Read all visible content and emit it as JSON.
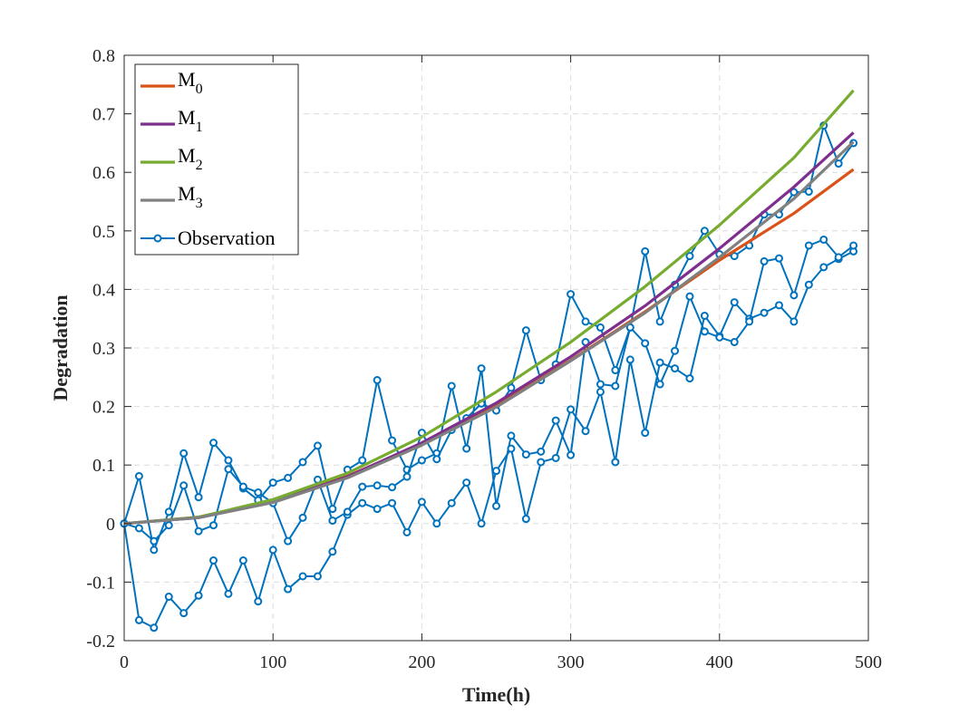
{
  "chart_data": {
    "type": "line",
    "title": "",
    "xlabel": "Time(h)",
    "ylabel": "Degradation",
    "xlim": [
      0,
      500
    ],
    "ylim": [
      -0.2,
      0.8
    ],
    "xticks": [
      0,
      100,
      200,
      300,
      400,
      500
    ],
    "yticks": [
      -0.2,
      -0.1,
      0,
      0.1,
      0.2,
      0.3,
      0.4,
      0.5,
      0.6,
      0.7,
      0.8
    ],
    "xtick_labels": [
      "0",
      "100",
      "200",
      "300",
      "400",
      "500"
    ],
    "ytick_labels": [
      "-0.2",
      "-0.1",
      "0",
      "0.1",
      "0.2",
      "0.3",
      "0.4",
      "0.5",
      "0.6",
      "0.7",
      "0.8"
    ],
    "grid": true,
    "legend_position": "top-left",
    "series": [
      {
        "name": "M",
        "subscript": "0",
        "color": "#D95319",
        "style": "line",
        "x": [
          0,
          50,
          100,
          150,
          200,
          250,
          300,
          350,
          400,
          450,
          490
        ],
        "y": [
          0,
          0.011,
          0.039,
          0.081,
          0.136,
          0.202,
          0.279,
          0.362,
          0.45,
          0.53,
          0.605
        ]
      },
      {
        "name": "M",
        "subscript": "1",
        "color": "#7E2F8E",
        "style": "line",
        "x": [
          0,
          50,
          100,
          150,
          200,
          250,
          300,
          350,
          400,
          450,
          490
        ],
        "y": [
          0,
          0.01,
          0.037,
          0.08,
          0.138,
          0.206,
          0.285,
          0.372,
          0.47,
          0.575,
          0.668
        ]
      },
      {
        "name": "M",
        "subscript": "2",
        "color": "#77AC30",
        "style": "line",
        "x": [
          0,
          50,
          100,
          150,
          200,
          250,
          300,
          350,
          400,
          450,
          490
        ],
        "y": [
          0,
          0.011,
          0.041,
          0.086,
          0.148,
          0.225,
          0.31,
          0.405,
          0.51,
          0.625,
          0.74
        ]
      },
      {
        "name": "M",
        "subscript": "3",
        "color": "#808080",
        "style": "line",
        "x": [
          0,
          50,
          100,
          150,
          200,
          250,
          300,
          350,
          400,
          450,
          490
        ],
        "y": [
          0,
          0.01,
          0.036,
          0.078,
          0.134,
          0.199,
          0.278,
          0.36,
          0.455,
          0.555,
          0.652
        ]
      },
      {
        "name": "Observation",
        "color": "#0072BD",
        "style": "line-marker",
        "x": [
          0,
          10,
          20,
          30,
          40,
          50,
          60,
          70,
          80,
          90,
          100,
          110,
          120,
          130,
          140,
          150,
          160,
          170,
          180,
          190,
          200,
          210,
          220,
          230,
          240,
          250,
          260,
          270,
          280,
          290,
          300,
          310,
          320,
          330,
          340,
          350,
          360,
          370,
          380,
          390,
          400,
          410,
          420,
          430,
          440,
          450,
          460,
          470,
          480,
          490
        ],
        "y": [
          0,
          0.081,
          -0.045,
          0.02,
          0.12,
          0.045,
          0.138,
          0.108,
          0.06,
          0.04,
          0.07,
          0.078,
          0.105,
          0.133,
          0.025,
          0.092,
          0.108,
          0.245,
          0.142,
          0.092,
          0.108,
          0.12,
          0.235,
          0.128,
          0.265,
          0.03,
          0.15,
          0.118,
          0.123,
          0.176,
          0.117,
          0.31,
          0.238,
          0.235,
          0.335,
          0.465,
          0.345,
          0.408,
          0.457,
          0.5,
          0.46,
          0.457,
          0.475,
          0.528,
          0.528,
          0.566,
          0.567,
          0.68,
          0.615,
          0.65
        ]
      },
      {
        "name": "Observation",
        "color": "#0072BD",
        "style": "line-marker",
        "x": [
          0,
          10,
          20,
          30,
          40,
          50,
          60,
          70,
          80,
          90,
          100,
          110,
          120,
          130,
          140,
          150,
          160,
          170,
          180,
          190,
          200,
          210,
          220,
          230,
          240,
          250,
          260,
          270,
          280,
          290,
          300,
          310,
          320,
          330,
          340,
          350,
          360,
          370,
          380,
          390,
          400,
          410,
          420,
          430,
          440,
          450,
          460,
          470,
          480,
          490
        ],
        "y": [
          0,
          -0.165,
          -0.178,
          -0.125,
          -0.153,
          -0.123,
          -0.063,
          -0.12,
          -0.063,
          -0.133,
          -0.045,
          -0.112,
          -0.09,
          -0.09,
          -0.048,
          0.015,
          0.035,
          0.025,
          0.035,
          -0.015,
          0.037,
          0.0,
          0.035,
          0.07,
          0.0,
          0.09,
          0.128,
          0.008,
          0.105,
          0.112,
          0.195,
          0.158,
          0.225,
          0.105,
          0.28,
          0.155,
          0.275,
          0.265,
          0.248,
          0.355,
          0.32,
          0.378,
          0.35,
          0.36,
          0.373,
          0.345,
          0.408,
          0.438,
          0.452,
          0.465
        ]
      },
      {
        "name": "Observation",
        "color": "#0072BD",
        "style": "line-marker",
        "x": [
          0,
          10,
          20,
          30,
          40,
          50,
          60,
          70,
          80,
          90,
          100,
          110,
          120,
          130,
          140,
          150,
          160,
          170,
          180,
          190,
          200,
          210,
          220,
          230,
          240,
          250,
          260,
          270,
          280,
          290,
          300,
          310,
          320,
          330,
          340,
          350,
          360,
          370,
          380,
          390,
          400,
          410,
          420,
          430,
          440,
          450,
          460,
          470,
          480,
          490
        ],
        "y": [
          0,
          -0.008,
          -0.03,
          -0.003,
          0.065,
          -0.013,
          -0.003,
          0.093,
          0.063,
          0.053,
          0.035,
          -0.03,
          0.01,
          0.075,
          0.005,
          0.02,
          0.063,
          0.065,
          0.062,
          0.08,
          0.155,
          0.11,
          0.16,
          0.18,
          0.205,
          0.193,
          0.232,
          0.33,
          0.245,
          0.272,
          0.392,
          0.345,
          0.335,
          0.262,
          0.335,
          0.308,
          0.238,
          0.295,
          0.388,
          0.328,
          0.318,
          0.31,
          0.345,
          0.448,
          0.453,
          0.39,
          0.475,
          0.485,
          0.455,
          0.475
        ]
      }
    ]
  }
}
